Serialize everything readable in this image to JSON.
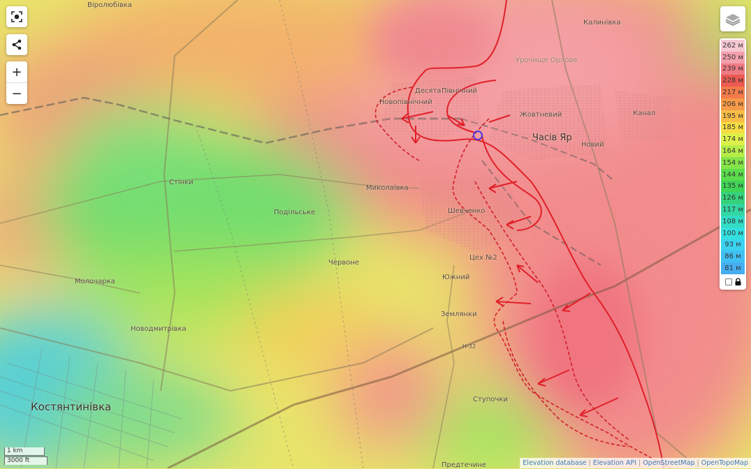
{
  "map_controls": {
    "fullscreen_icon": "focus-frame-icon",
    "share_icon": "share-icon",
    "zoom_in": "+",
    "zoom_out": "−",
    "layers_icon": "layers-icon"
  },
  "legend": {
    "items": [
      {
        "label": "262 м",
        "color": "#f6c8d2"
      },
      {
        "label": "250 м",
        "color": "#f4a0ad"
      },
      {
        "label": "239 м",
        "color": "#f07b84"
      },
      {
        "label": "228 м",
        "color": "#ec5a52"
      },
      {
        "label": "217 м",
        "color": "#f47a4a"
      },
      {
        "label": "206 м",
        "color": "#f79a48"
      },
      {
        "label": "195 м",
        "color": "#f9bd45"
      },
      {
        "label": "185 м",
        "color": "#f7dd43"
      },
      {
        "label": "174 м",
        "color": "#def04a"
      },
      {
        "label": "164 м",
        "color": "#b6ec48"
      },
      {
        "label": "154 м",
        "color": "#86e448"
      },
      {
        "label": "144 м",
        "color": "#5cdc4c"
      },
      {
        "label": "135 м",
        "color": "#40d456"
      },
      {
        "label": "126 м",
        "color": "#35d27a"
      },
      {
        "label": "117 м",
        "color": "#33d6a0"
      },
      {
        "label": "108 м",
        "color": "#33dcc4"
      },
      {
        "label": "100 м",
        "color": "#33e0e0"
      },
      {
        "label": "93 м",
        "color": "#3ad2f0"
      },
      {
        "label": "86 м",
        "color": "#40c0f2"
      },
      {
        "label": "81 м",
        "color": "#46aef0"
      }
    ],
    "lock_icon": "lock-icon"
  },
  "places": {
    "virolubivka": "Віролюбівка",
    "kalynivka": "Калинівка",
    "urochyshche": "Урочище Орлове",
    "desiata": "Десята",
    "pivnichnyi": "Північний",
    "novopivnichnyi": "Новопівнічний",
    "zhovtnevyi": "Жовтневий",
    "chasiv_yar": "Часів Яр",
    "novyi": "Новий",
    "kanal": "Канал",
    "stinky": "Стінки",
    "mykolaivka": "Миколаївка",
    "podilske": "Подільське",
    "shevchenko": "Шевченко",
    "tsekh2": "Цех №2",
    "chervone": "Червоне",
    "molocharka": "Молочарка",
    "yuzhnyi": "Южний",
    "zemlianky": "Землянки",
    "novodmytrivka": "Новодмитрівка",
    "kostiantynivka": "Костянтинівка",
    "stupochky": "Ступочки",
    "predtechyne": "Предтечине",
    "road_h32": "Н-32"
  },
  "scale": {
    "metric": "1 km",
    "imperial": "3000 ft"
  },
  "attribution": [
    "Elevation database",
    "Elevation API",
    "OpenStreetMap",
    "OpenTopoMap"
  ],
  "colors": {
    "front_line": "#e0202a",
    "marker": "#4a3adf"
  }
}
